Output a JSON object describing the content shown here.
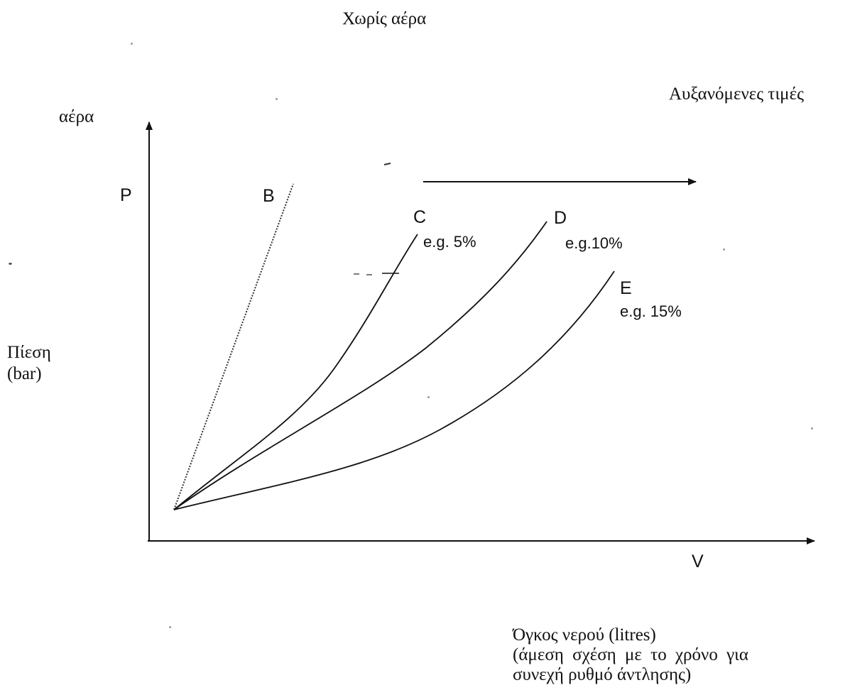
{
  "labels": {
    "title_top": "Χωρίς αέρα",
    "increasing_values": "Αυξανόμενες τιμές",
    "air": "αέρα",
    "pressure_line1": "Πίεση",
    "pressure_line2": "(bar)",
    "axis_p": "P",
    "axis_v": "V",
    "volume_line1": "Όγκος νερού (litres)",
    "volume_line2": "(άμεση σχέση με το χρόνο για",
    "volume_line3": "συνεχή ρυθμό άντλησης)"
  },
  "curves": {
    "b": {
      "name": "B"
    },
    "c": {
      "name": "C",
      "note": "e.g. 5%"
    },
    "d": {
      "name": "D",
      "note": "e.g.10%"
    },
    "e": {
      "name": "E",
      "note": "e.g. 15%"
    }
  },
  "colors": {
    "ink": "#111111",
    "background": "#ffffff"
  }
}
